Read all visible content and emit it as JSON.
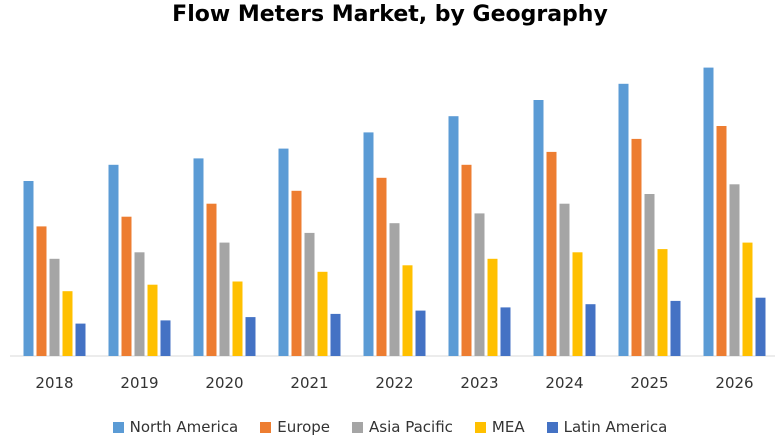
{
  "chart_data": {
    "type": "bar",
    "title": "Flow Meters Market, by Geography",
    "categories": [
      "2018",
      "2019",
      "2020",
      "2021",
      "2022",
      "2023",
      "2024",
      "2025",
      "2026"
    ],
    "series": [
      {
        "name": "North America",
        "color": "#5B9BD5",
        "values": [
          54,
          59,
          61,
          64,
          69,
          74,
          79,
          84,
          89
        ]
      },
      {
        "name": "Europe",
        "color": "#ED7D31",
        "values": [
          40,
          43,
          47,
          51,
          55,
          59,
          63,
          67,
          71
        ]
      },
      {
        "name": "Asia Pacific",
        "color": "#A5A5A5",
        "values": [
          30,
          32,
          35,
          38,
          41,
          44,
          47,
          50,
          53
        ]
      },
      {
        "name": "MEA",
        "color": "#FFC000",
        "values": [
          20,
          22,
          23,
          26,
          28,
          30,
          32,
          33,
          35
        ]
      },
      {
        "name": "Latin America",
        "color": "#4472C4",
        "values": [
          10,
          11,
          12,
          13,
          14,
          15,
          16,
          17,
          18
        ]
      }
    ],
    "ylim": [
      0,
      100
    ],
    "grid": false,
    "legend_position": "bottom"
  }
}
